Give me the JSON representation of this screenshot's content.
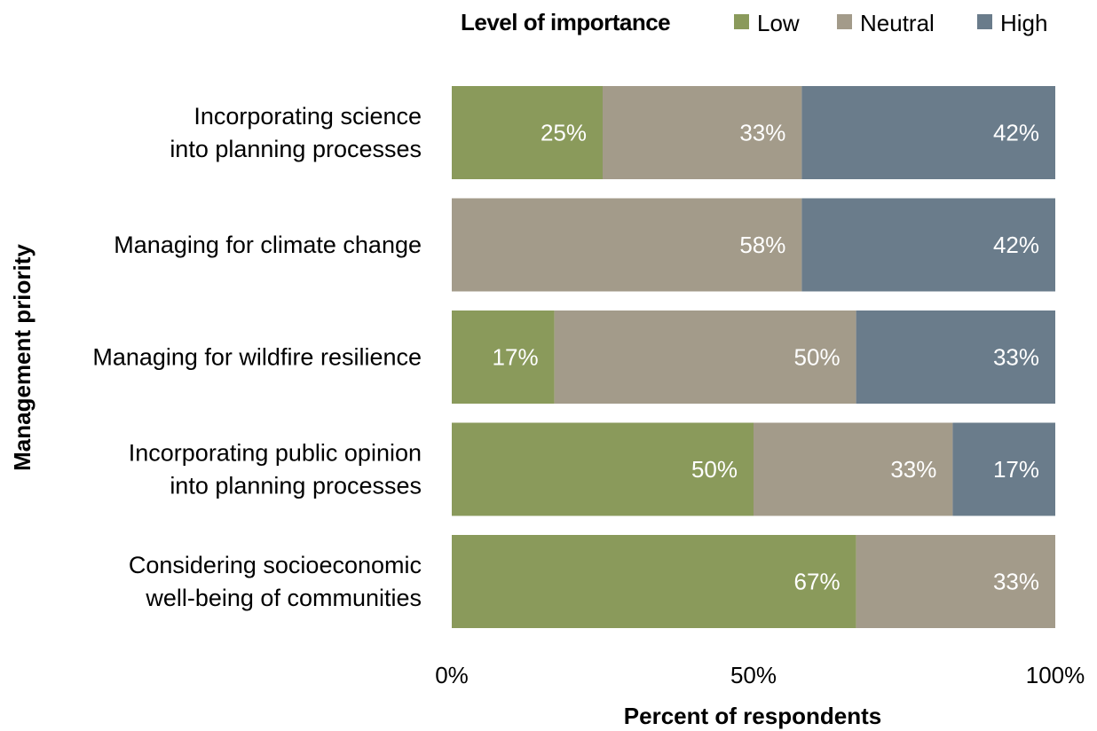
{
  "legend": {
    "title": "Level of importance"
  },
  "chart_data": {
    "type": "bar",
    "orientation": "horizontal",
    "stacked": true,
    "categories": [
      [
        "Incorporating science",
        "into planning processes"
      ],
      [
        "Managing for climate change"
      ],
      [
        "Managing for wildfire resilience"
      ],
      [
        "Incorporating public opinion",
        "into planning processes"
      ],
      [
        "Considering socioeconomic",
        "well-being of communities"
      ]
    ],
    "series": [
      {
        "name": "Low",
        "color": "#8A9A5B",
        "values": [
          25,
          0,
          17,
          50,
          67
        ]
      },
      {
        "name": "Neutral",
        "color": "#A39B8A",
        "values": [
          33,
          58,
          50,
          33,
          33
        ]
      },
      {
        "name": "High",
        "color": "#6A7C8B",
        "values": [
          42,
          42,
          33,
          17,
          0
        ]
      }
    ],
    "xlabel": "Percent of respondents",
    "ylabel": "Management priority",
    "xlim": [
      0,
      100
    ],
    "xticks": [
      "0%",
      "50%",
      "100%"
    ],
    "legend_position": "top-right",
    "grid": false
  }
}
